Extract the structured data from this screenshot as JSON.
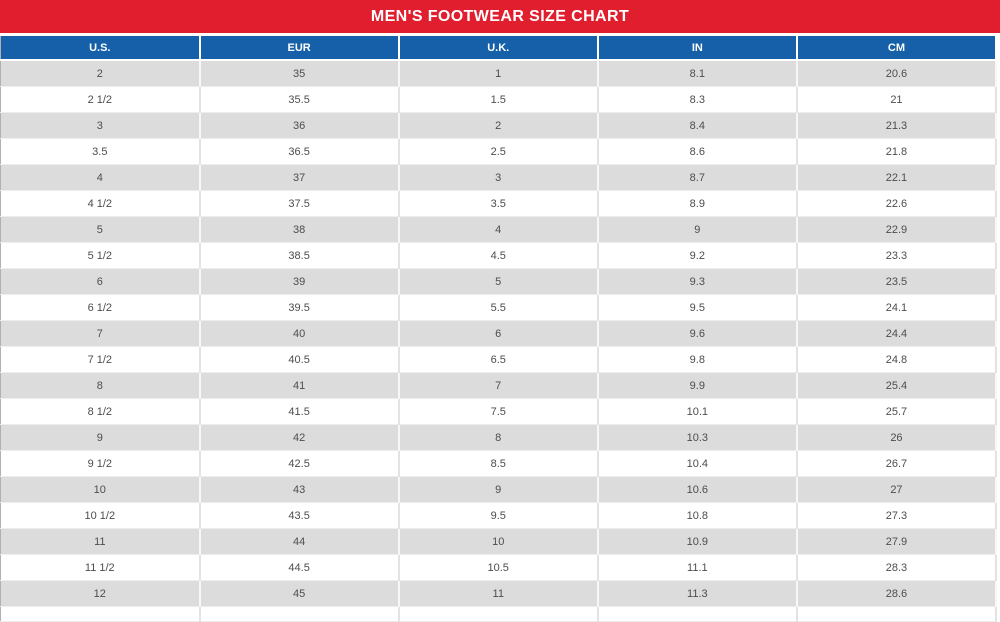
{
  "title": "MEN'S FOOTWEAR SIZE CHART",
  "colors": {
    "banner_red": "#e01e2d",
    "header_blue": "#1560a8",
    "row_gray": "#dcdcdc",
    "row_white": "#ffffff"
  },
  "chart_data": {
    "type": "table",
    "title": "MEN'S FOOTWEAR SIZE CHART",
    "columns": [
      "U.S.",
      "EUR",
      "U.K.",
      "IN",
      "CM"
    ],
    "rows": [
      [
        "2",
        "35",
        "1",
        "8.1",
        "20.6"
      ],
      [
        "2 1/2",
        "35.5",
        "1.5",
        "8.3",
        "21"
      ],
      [
        "3",
        "36",
        "2",
        "8.4",
        "21.3"
      ],
      [
        "3.5",
        "36.5",
        "2.5",
        "8.6",
        "21.8"
      ],
      [
        "4",
        "37",
        "3",
        "8.7",
        "22.1"
      ],
      [
        "4 1/2",
        "37.5",
        "3.5",
        "8.9",
        "22.6"
      ],
      [
        "5",
        "38",
        "4",
        "9",
        "22.9"
      ],
      [
        "5 1/2",
        "38.5",
        "4.5",
        "9.2",
        "23.3"
      ],
      [
        "6",
        "39",
        "5",
        "9.3",
        "23.5"
      ],
      [
        "6 1/2",
        "39.5",
        "5.5",
        "9.5",
        "24.1"
      ],
      [
        "7",
        "40",
        "6",
        "9.6",
        "24.4"
      ],
      [
        "7 1/2",
        "40.5",
        "6.5",
        "9.8",
        "24.8"
      ],
      [
        "8",
        "41",
        "7",
        "9.9",
        "25.4"
      ],
      [
        "8 1/2",
        "41.5",
        "7.5",
        "10.1",
        "25.7"
      ],
      [
        "9",
        "42",
        "8",
        "10.3",
        "26"
      ],
      [
        "9 1/2",
        "42.5",
        "8.5",
        "10.4",
        "26.7"
      ],
      [
        "10",
        "43",
        "9",
        "10.6",
        "27"
      ],
      [
        "10 1/2",
        "43.5",
        "9.5",
        "10.8",
        "27.3"
      ],
      [
        "11",
        "44",
        "10",
        "10.9",
        "27.9"
      ],
      [
        "11 1/2",
        "44.5",
        "10.5",
        "11.1",
        "28.3"
      ],
      [
        "12",
        "45",
        "11",
        "11.3",
        "28.6"
      ]
    ]
  }
}
